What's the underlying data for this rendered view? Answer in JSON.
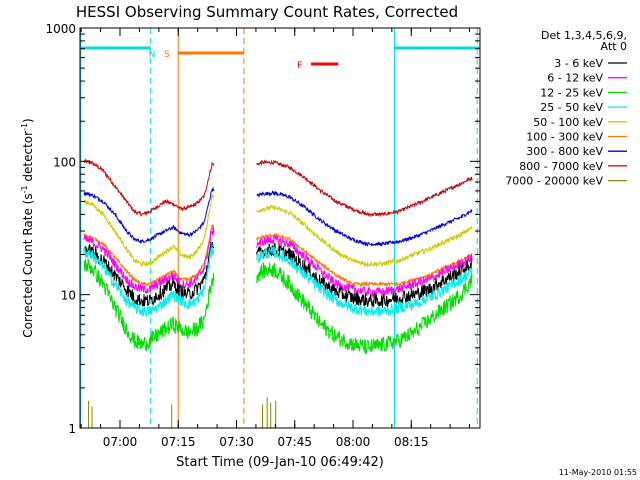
{
  "chart_data": {
    "type": "line",
    "title": "HESSI Observing Summary Count Rates, Corrected",
    "xlabel": "Start Time (09-Jan-10 06:49:42)",
    "ylabel_parts": [
      "Corrected Count Rate (s",
      "-1",
      " detector",
      "-1",
      ")"
    ],
    "y_scale": "log",
    "ylim": [
      1,
      1000
    ],
    "xlim_minutes_after_0649": [
      0,
      103
    ],
    "x_ticks": [
      {
        "t": 10.3,
        "label": "07:00"
      },
      {
        "t": 25.3,
        "label": "07:15"
      },
      {
        "t": 40.3,
        "label": "07:30"
      },
      {
        "t": 55.3,
        "label": "07:45"
      },
      {
        "t": 70.3,
        "label": "08:00"
      },
      {
        "t": 85.3,
        "label": "08:15"
      }
    ],
    "y_ticks": [
      {
        "v": 1,
        "label": "1"
      },
      {
        "v": 10,
        "label": "10"
      },
      {
        "v": 100,
        "label": "100"
      },
      {
        "v": 1000,
        "label": "1000"
      }
    ],
    "legend": {
      "placement": "right",
      "header": [
        "Det 1,3,4,5,6,9,",
        "Att 0"
      ],
      "entries": [
        {
          "label": "3 - 6 keV",
          "color": "#000000"
        },
        {
          "label": "6 - 12 keV",
          "color": "#ff00ff"
        },
        {
          "label": "12 - 25 keV",
          "color": "#00dd00"
        },
        {
          "label": "25 - 50 keV",
          "color": "#00eeee"
        },
        {
          "label": "50 - 100 keV",
          "color": "#cccc00"
        },
        {
          "label": "100 - 300 keV",
          "color": "#ff7700"
        },
        {
          "label": "300 - 800 keV",
          "color": "#0000dd"
        },
        {
          "label": "800 - 7000 keV",
          "color": "#cc0000"
        },
        {
          "label": "7000 - 20000 keV",
          "color": "#888800"
        }
      ]
    },
    "gap_minutes": [
      34.5,
      45.5
    ],
    "series": [
      {
        "color": "#cc0000",
        "noise": 0.03,
        "points": [
          [
            1,
            100
          ],
          [
            3,
            98
          ],
          [
            6,
            85
          ],
          [
            9,
            65
          ],
          [
            12,
            50
          ],
          [
            14,
            42
          ],
          [
            16,
            40
          ],
          [
            18,
            42
          ],
          [
            20,
            46
          ],
          [
            22,
            50
          ],
          [
            24,
            48
          ],
          [
            26,
            44
          ],
          [
            28,
            45
          ],
          [
            30,
            48
          ],
          [
            32,
            55
          ],
          [
            34,
            95
          ],
          [
            45.5,
            95
          ],
          [
            47,
            98
          ],
          [
            50,
            98
          ],
          [
            54,
            90
          ],
          [
            58,
            75
          ],
          [
            62,
            60
          ],
          [
            66,
            50
          ],
          [
            70,
            44
          ],
          [
            74,
            40
          ],
          [
            78,
            40
          ],
          [
            82,
            42
          ],
          [
            86,
            47
          ],
          [
            90,
            53
          ],
          [
            94,
            60
          ],
          [
            98,
            68
          ],
          [
            101,
            75
          ]
        ]
      },
      {
        "color": "#0000dd",
        "noise": 0.03,
        "points": [
          [
            1,
            58
          ],
          [
            3,
            56
          ],
          [
            6,
            50
          ],
          [
            9,
            40
          ],
          [
            12,
            30
          ],
          [
            14,
            26
          ],
          [
            16,
            25
          ],
          [
            18,
            26
          ],
          [
            20,
            28
          ],
          [
            22,
            30
          ],
          [
            24,
            32
          ],
          [
            26,
            29
          ],
          [
            28,
            28
          ],
          [
            30,
            30
          ],
          [
            32,
            35
          ],
          [
            34,
            62
          ],
          [
            45.5,
            55
          ],
          [
            47,
            57
          ],
          [
            50,
            58
          ],
          [
            54,
            54
          ],
          [
            58,
            45
          ],
          [
            62,
            36
          ],
          [
            66,
            30
          ],
          [
            70,
            26
          ],
          [
            74,
            24
          ],
          [
            78,
            24
          ],
          [
            82,
            25
          ],
          [
            86,
            27
          ],
          [
            90,
            30
          ],
          [
            94,
            34
          ],
          [
            98,
            38
          ],
          [
            101,
            43
          ]
        ]
      },
      {
        "color": "#cccc00",
        "noise": 0.04,
        "points": [
          [
            1,
            50
          ],
          [
            3,
            48
          ],
          [
            6,
            40
          ],
          [
            9,
            30
          ],
          [
            12,
            22
          ],
          [
            14,
            18
          ],
          [
            16,
            17
          ],
          [
            18,
            17
          ],
          [
            20,
            19
          ],
          [
            22,
            21
          ],
          [
            24,
            23
          ],
          [
            26,
            20
          ],
          [
            28,
            19
          ],
          [
            30,
            21
          ],
          [
            32,
            26
          ],
          [
            34,
            55
          ],
          [
            45.5,
            42
          ],
          [
            47,
            44
          ],
          [
            50,
            45
          ],
          [
            54,
            41
          ],
          [
            58,
            33
          ],
          [
            62,
            26
          ],
          [
            66,
            21
          ],
          [
            70,
            18
          ],
          [
            74,
            17
          ],
          [
            78,
            17
          ],
          [
            82,
            18
          ],
          [
            86,
            20
          ],
          [
            90,
            22
          ],
          [
            94,
            25
          ],
          [
            98,
            28
          ],
          [
            101,
            32
          ]
        ]
      },
      {
        "color": "#ff7700",
        "noise": 0.03,
        "points": [
          [
            1,
            28
          ],
          [
            3,
            27
          ],
          [
            6,
            24
          ],
          [
            9,
            19
          ],
          [
            12,
            15
          ],
          [
            14,
            13
          ],
          [
            16,
            12
          ],
          [
            18,
            12
          ],
          [
            20,
            13
          ],
          [
            22,
            14
          ],
          [
            24,
            15
          ],
          [
            26,
            13
          ],
          [
            28,
            13
          ],
          [
            30,
            14
          ],
          [
            32,
            17
          ],
          [
            34,
            33
          ],
          [
            45.5,
            26
          ],
          [
            47,
            27
          ],
          [
            50,
            28
          ],
          [
            54,
            26
          ],
          [
            58,
            21
          ],
          [
            62,
            17
          ],
          [
            66,
            14
          ],
          [
            70,
            12
          ],
          [
            74,
            12
          ],
          [
            78,
            12
          ],
          [
            82,
            12
          ],
          [
            86,
            13
          ],
          [
            90,
            14
          ],
          [
            94,
            16
          ],
          [
            98,
            18
          ],
          [
            101,
            20
          ]
        ]
      },
      {
        "color": "#ff00ff",
        "noise": 0.08,
        "points": [
          [
            1,
            26
          ],
          [
            3,
            25
          ],
          [
            6,
            22
          ],
          [
            9,
            17
          ],
          [
            12,
            13
          ],
          [
            14,
            11.5
          ],
          [
            16,
            11
          ],
          [
            18,
            11
          ],
          [
            20,
            12
          ],
          [
            22,
            13
          ],
          [
            24,
            14
          ],
          [
            26,
            12
          ],
          [
            28,
            12
          ],
          [
            30,
            13
          ],
          [
            32,
            16
          ],
          [
            34,
            30
          ],
          [
            45.5,
            24
          ],
          [
            47,
            25
          ],
          [
            50,
            26
          ],
          [
            54,
            24
          ],
          [
            58,
            19
          ],
          [
            62,
            15
          ],
          [
            66,
            12
          ],
          [
            70,
            11
          ],
          [
            74,
            10.5
          ],
          [
            78,
            10.5
          ],
          [
            82,
            11
          ],
          [
            86,
            12
          ],
          [
            90,
            13
          ],
          [
            94,
            15
          ],
          [
            98,
            17
          ],
          [
            101,
            19
          ]
        ]
      },
      {
        "color": "#000000",
        "noise": 0.12,
        "points": [
          [
            1,
            22
          ],
          [
            3,
            21
          ],
          [
            6,
            18
          ],
          [
            9,
            14
          ],
          [
            12,
            11
          ],
          [
            14,
            9.5
          ],
          [
            16,
            9
          ],
          [
            18,
            9
          ],
          [
            20,
            10
          ],
          [
            22,
            11
          ],
          [
            24,
            12
          ],
          [
            26,
            10.5
          ],
          [
            28,
            10
          ],
          [
            30,
            11
          ],
          [
            32,
            13
          ],
          [
            34,
            24
          ],
          [
            45.5,
            20
          ],
          [
            47,
            21
          ],
          [
            50,
            22
          ],
          [
            54,
            20
          ],
          [
            58,
            16
          ],
          [
            62,
            12.5
          ],
          [
            66,
            10.5
          ],
          [
            70,
            9.5
          ],
          [
            74,
            9
          ],
          [
            78,
            9
          ],
          [
            82,
            9.5
          ],
          [
            86,
            10
          ],
          [
            90,
            11
          ],
          [
            94,
            13
          ],
          [
            98,
            15
          ],
          [
            101,
            17
          ]
        ]
      },
      {
        "color": "#00eeee",
        "noise": 0.1,
        "points": [
          [
            1,
            21
          ],
          [
            3,
            20
          ],
          [
            6,
            16
          ],
          [
            9,
            12
          ],
          [
            12,
            9
          ],
          [
            14,
            8
          ],
          [
            16,
            7.5
          ],
          [
            18,
            7.5
          ],
          [
            20,
            8
          ],
          [
            22,
            9
          ],
          [
            24,
            10
          ],
          [
            26,
            9
          ],
          [
            28,
            8.5
          ],
          [
            30,
            9
          ],
          [
            32,
            11
          ],
          [
            34,
            22
          ],
          [
            45.5,
            19
          ],
          [
            47,
            20
          ],
          [
            50,
            21
          ],
          [
            54,
            18
          ],
          [
            58,
            14
          ],
          [
            62,
            11
          ],
          [
            66,
            9
          ],
          [
            70,
            8
          ],
          [
            74,
            7.5
          ],
          [
            78,
            7.5
          ],
          [
            82,
            8
          ],
          [
            86,
            8.5
          ],
          [
            90,
            9.5
          ],
          [
            94,
            11
          ],
          [
            98,
            13
          ],
          [
            101,
            15
          ]
        ]
      },
      {
        "color": "#00dd00",
        "noise": 0.14,
        "points": [
          [
            1,
            17
          ],
          [
            3,
            16
          ],
          [
            6,
            12
          ],
          [
            9,
            8
          ],
          [
            12,
            5.5
          ],
          [
            14,
            4.5
          ],
          [
            16,
            4.2
          ],
          [
            18,
            4.5
          ],
          [
            20,
            5
          ],
          [
            22,
            5.5
          ],
          [
            24,
            6
          ],
          [
            26,
            5.5
          ],
          [
            28,
            5.2
          ],
          [
            30,
            5.5
          ],
          [
            32,
            6.5
          ],
          [
            34,
            13
          ],
          [
            45.5,
            14
          ],
          [
            47,
            15
          ],
          [
            50,
            15.5
          ],
          [
            54,
            12
          ],
          [
            58,
            8.5
          ],
          [
            62,
            6
          ],
          [
            66,
            4.8
          ],
          [
            70,
            4.3
          ],
          [
            74,
            4
          ],
          [
            78,
            4.2
          ],
          [
            82,
            4.5
          ],
          [
            86,
            5.2
          ],
          [
            90,
            6.5
          ],
          [
            94,
            8
          ],
          [
            98,
            10
          ],
          [
            101,
            13
          ]
        ]
      }
    ],
    "spikes_7000_20000": [
      [
        2.2,
        1.6
      ],
      [
        3.1,
        1.45
      ],
      [
        23.6,
        1.5
      ],
      [
        47.0,
        1.5
      ],
      [
        48.2,
        1.7
      ],
      [
        49.1,
        1.55
      ],
      [
        50.4,
        1.6
      ]
    ],
    "flags": [
      {
        "label": "N",
        "color": "#00dddd",
        "row": 0,
        "segments": [
          [
            0,
            18.2
          ],
          [
            81,
            103
          ]
        ]
      },
      {
        "label": "S",
        "color": "#ff7700",
        "row": 1,
        "segments": [
          [
            25.3,
            42.2
          ]
        ]
      },
      {
        "label": "F",
        "color": "#ff0000",
        "row": 2,
        "segments": [
          [
            59.5,
            66.5
          ]
        ]
      }
    ],
    "vlines": [
      {
        "t": 0.2,
        "color": "#00dddd",
        "dashed": false
      },
      {
        "t": 18.2,
        "color": "#00dddd",
        "dashed": true
      },
      {
        "t": 25.3,
        "color": "#ff7700",
        "dashed": false
      },
      {
        "t": 42.2,
        "color": "#ff7700",
        "dashed": true
      },
      {
        "t": 81.0,
        "color": "#00dddd",
        "dashed": false
      },
      {
        "t": 102.3,
        "color": "#00dddd",
        "dashed": true
      }
    ]
  },
  "footer": {
    "timestamp": "11-May-2010 01:55"
  }
}
